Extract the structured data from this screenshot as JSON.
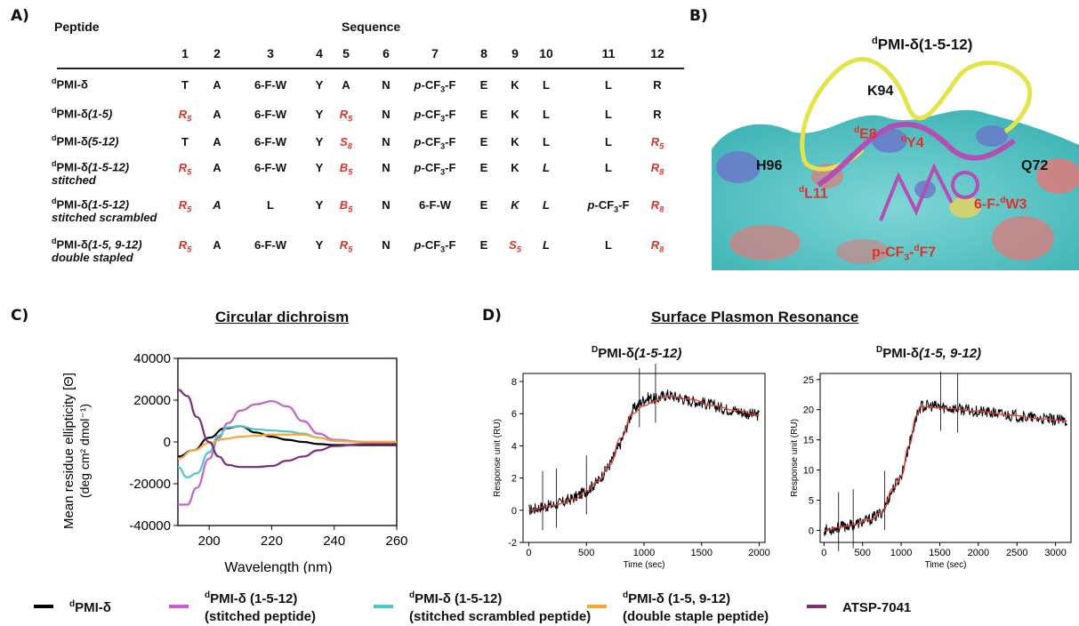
{
  "panels": {
    "a": "A)",
    "b": "B)",
    "c": "C)",
    "d": "D)"
  },
  "table": {
    "header_peptide": "Peptide",
    "header_sequence": "Sequence",
    "positions": [
      "1",
      "2",
      "3",
      "4",
      "5",
      "6",
      "7",
      "8",
      "9",
      "10",
      "11",
      "12"
    ],
    "rows": [
      {
        "name_sup": "d",
        "name_main": "PMI-δ",
        "name_ital": "",
        "name_line2": "",
        "cells": [
          {
            "t": "T"
          },
          {
            "t": "A"
          },
          {
            "t": "6-F-W"
          },
          {
            "t": "Y"
          },
          {
            "t": "A"
          },
          {
            "t": "N"
          },
          {
            "t": "p-CF3-F",
            "pcf": true
          },
          {
            "t": "E"
          },
          {
            "t": "K"
          },
          {
            "t": "L"
          },
          {
            "t": "L"
          },
          {
            "t": "R"
          }
        ]
      },
      {
        "name_sup": "d",
        "name_main": "PMI-δ",
        "name_ital": "(1-5)",
        "name_line2": "",
        "cells": [
          {
            "t": "R",
            "sub": "5",
            "red": true
          },
          {
            "t": "A"
          },
          {
            "t": "6-F-W"
          },
          {
            "t": "Y"
          },
          {
            "t": "R",
            "sub": "5",
            "red": true
          },
          {
            "t": "N"
          },
          {
            "t": "p-CF3-F",
            "pcf": true
          },
          {
            "t": "E"
          },
          {
            "t": "K"
          },
          {
            "t": "L"
          },
          {
            "t": "L"
          },
          {
            "t": "R"
          }
        ]
      },
      {
        "name_sup": "d",
        "name_main": "PMI-δ",
        "name_ital": "(5-12)",
        "name_line2": "",
        "cells": [
          {
            "t": "T"
          },
          {
            "t": "A"
          },
          {
            "t": "6-F-W"
          },
          {
            "t": "Y"
          },
          {
            "t": "S",
            "sub": "8",
            "red": true
          },
          {
            "t": "N"
          },
          {
            "t": "p-CF3-F",
            "pcf": true
          },
          {
            "t": "E"
          },
          {
            "t": "K"
          },
          {
            "t": "L"
          },
          {
            "t": "L"
          },
          {
            "t": "R",
            "sub": "5",
            "red": true
          }
        ]
      },
      {
        "name_sup": "d",
        "name_main": "PMI-δ",
        "name_ital": "(1-5-12)",
        "name_line2": "stitched",
        "cells": [
          {
            "t": "R",
            "sub": "5",
            "red": true
          },
          {
            "t": "A"
          },
          {
            "t": "6-F-W"
          },
          {
            "t": "Y"
          },
          {
            "t": "B",
            "sub": "5",
            "red": true
          },
          {
            "t": "N"
          },
          {
            "t": "p-CF3-F",
            "pcf": true
          },
          {
            "t": "E"
          },
          {
            "t": "K"
          },
          {
            "t": "L",
            "ital": true
          },
          {
            "t": "L"
          },
          {
            "t": "R",
            "sub": "8",
            "red": true
          }
        ]
      },
      {
        "name_sup": "d",
        "name_main": "PMI-δ",
        "name_ital": "(1-5-12)",
        "name_line2": "stitched scrambled",
        "cells": [
          {
            "t": "R",
            "sub": "5",
            "red": true
          },
          {
            "t": "A",
            "ital": true
          },
          {
            "t": "L"
          },
          {
            "t": "Y"
          },
          {
            "t": "B",
            "sub": "5",
            "red": true
          },
          {
            "t": "N"
          },
          {
            "t": "6-F-W"
          },
          {
            "t": "E"
          },
          {
            "t": "K",
            "ital": true
          },
          {
            "t": "L",
            "ital": true
          },
          {
            "t": "p-CF3-F",
            "pcf": true
          },
          {
            "t": "R",
            "sub": "8",
            "red": true
          }
        ]
      },
      {
        "name_sup": "d",
        "name_main": "PMI-δ",
        "name_ital": "(1-5, 9-12)",
        "name_line2": "double stapled",
        "cells": [
          {
            "t": "R",
            "sub": "5",
            "red": true
          },
          {
            "t": "A"
          },
          {
            "t": "6-F-W"
          },
          {
            "t": "Y"
          },
          {
            "t": "R",
            "sub": "5",
            "red": true
          },
          {
            "t": "N"
          },
          {
            "t": "p-CF3-F",
            "pcf": true
          },
          {
            "t": "E"
          },
          {
            "t": "S",
            "sub": "5",
            "red": true
          },
          {
            "t": "L",
            "ital": true
          },
          {
            "t": "L"
          },
          {
            "t": "R",
            "sub": "8",
            "red": true
          }
        ]
      }
    ]
  },
  "structure": {
    "title_sup": "d",
    "title_main": "PMI-δ(1-5-12)",
    "labels_black": [
      "K94",
      "H96",
      "Q72"
    ],
    "labels_red": [
      {
        "sup": "d",
        "main": "E8"
      },
      {
        "sup": "d",
        "main": "Y4"
      },
      {
        "sup": "d",
        "main": "L11"
      },
      {
        "pre": "6-F-",
        "sup": "d",
        "main": "W3"
      },
      {
        "pre": "p-CF",
        "sub": "3",
        "mid": "-",
        "sup": "d",
        "main": "F7"
      }
    ]
  },
  "cd": {
    "title": "Circular dichroism",
    "ylabel_line1": "Mean residue ellipticity [Θ]",
    "ylabel_line2": "(deg cm² dmol⁻¹)",
    "xlabel": "Wavelength (nm)"
  },
  "spr": {
    "title": "Surface Plasmon Resonance",
    "left_title_sup": "D",
    "left_title_main": "PMI-δ",
    "left_title_ital": "(1-5-12)",
    "right_title_sup": "D",
    "right_title_main": "PMI-δ",
    "right_title_ital": "(1-5, 9-12)",
    "ylabel": "Response unit (RU)",
    "xlabel": "Time (sec)"
  },
  "legend": [
    {
      "sup": "d",
      "main": "PMI-δ",
      "line2": "",
      "color": "#000000"
    },
    {
      "sup": "d",
      "main": "PMI-δ (1-5-12)",
      "line2": "(stitched peptide)",
      "color": "#c45fd0"
    },
    {
      "sup": "d",
      "main": "PMI-δ (1-5-12)",
      "line2": "(stitched scrambled peptide)",
      "color": "#4fc7c4"
    },
    {
      "sup": "d",
      "main": "PMI-δ (1-5, 9-12)",
      "line2": "(double staple peptide)",
      "color": "#f5a83a"
    },
    {
      "sup": "",
      "main": "ATSP-7041",
      "line2": "",
      "color": "#7a2f7a"
    }
  ],
  "chart_data": [
    {
      "type": "line",
      "title": "Circular dichroism",
      "xlabel": "Wavelength (nm)",
      "ylabel": "Mean residue ellipticity [Θ] (deg cm² dmol⁻¹)",
      "xlim": [
        190,
        260
      ],
      "ylim": [
        -40000,
        40000
      ],
      "xticks": [
        200,
        220,
        240,
        260
      ],
      "yticks": [
        -40000,
        -20000,
        0,
        20000,
        40000
      ],
      "series": [
        {
          "name": "dPMI-δ",
          "color": "#000000",
          "x": [
            190,
            195,
            200,
            205,
            210,
            215,
            220,
            225,
            230,
            235,
            240,
            250,
            260
          ],
          "y": [
            -7000,
            -4000,
            2000,
            6500,
            7500,
            4500,
            2500,
            1000,
            0,
            -1000,
            -1500,
            -1500,
            -1500
          ]
        },
        {
          "name": "dPMI-δ (1-5-12)",
          "color": "#c45fd0",
          "x": [
            190,
            193,
            196,
            200,
            203,
            206,
            210,
            215,
            220,
            225,
            230,
            235,
            240,
            250,
            260
          ],
          "y": [
            -30000,
            -30000,
            -22000,
            -8000,
            2000,
            9000,
            15000,
            18000,
            19500,
            17000,
            10000,
            4000,
            1000,
            0,
            0
          ]
        },
        {
          "name": "dPMI-δ (1-5-12) stitched scrambled",
          "color": "#4fc7c4",
          "x": [
            190,
            193,
            196,
            200,
            203,
            206,
            210,
            215,
            220,
            225,
            230,
            235,
            240,
            250,
            260
          ],
          "y": [
            -12000,
            -17000,
            -15000,
            -5000,
            3000,
            7000,
            7500,
            6000,
            5500,
            5000,
            4000,
            2000,
            500,
            0,
            0
          ]
        },
        {
          "name": "dPMI-δ (1-5, 9-12)",
          "color": "#f5a83a",
          "x": [
            190,
            195,
            200,
            205,
            210,
            215,
            220,
            225,
            230,
            235,
            240,
            250,
            260
          ],
          "y": [
            -8000,
            -4000,
            -500,
            1500,
            2500,
            3000,
            3500,
            3500,
            3500,
            2000,
            500,
            0,
            0
          ]
        },
        {
          "name": "ATSP-7041",
          "color": "#7a2f7a",
          "x": [
            190,
            193,
            196,
            200,
            203,
            206,
            210,
            215,
            220,
            225,
            230,
            235,
            240,
            250,
            260
          ],
          "y": [
            25000,
            22000,
            12000,
            0,
            -7000,
            -11000,
            -12000,
            -12000,
            -11500,
            -9000,
            -7000,
            -4000,
            -2000,
            -1000,
            -1000
          ]
        }
      ]
    },
    {
      "type": "line",
      "title": "DPMI-δ(1-5-12)",
      "xlabel": "Time (sec)",
      "ylabel": "Response unit (RU)",
      "xlim": [
        -50,
        2050
      ],
      "ylim": [
        -2,
        8.5
      ],
      "xticks": [
        0,
        500,
        1000,
        1500,
        2000
      ],
      "yticks": [
        -2,
        0,
        2,
        4,
        6,
        8
      ],
      "series": [
        {
          "name": "data",
          "color": "#000000",
          "x": [
            0,
            100,
            200,
            300,
            400,
            500,
            600,
            700,
            800,
            900,
            1000,
            1050,
            1100,
            1200,
            1300,
            1400,
            1500,
            1600,
            1700,
            1800,
            1900,
            2000
          ],
          "y": [
            0,
            0.2,
            0.3,
            0.5,
            0.8,
            1.2,
            1.8,
            2.8,
            4.2,
            6.2,
            6.9,
            7.0,
            6.9,
            7.2,
            7.0,
            6.8,
            6.7,
            6.5,
            6.3,
            6.2,
            6.0,
            5.9
          ]
        },
        {
          "name": "fit",
          "color": "#e53935",
          "x": [
            0,
            200,
            400,
            500,
            600,
            700,
            800,
            900,
            1000,
            1100,
            1200,
            1400,
            1600,
            1800,
            2000
          ],
          "y": [
            0,
            0.3,
            0.7,
            1.2,
            1.8,
            2.8,
            4.5,
            6.0,
            6.5,
            6.8,
            7.1,
            6.9,
            6.5,
            6.2,
            5.9
          ]
        }
      ]
    },
    {
      "type": "line",
      "title": "DPMI-δ(1-5, 9-12)",
      "xlabel": "Time (sec)",
      "ylabel": "Response unit (RU)",
      "xlim": [
        -50,
        3200
      ],
      "ylim": [
        -2,
        26
      ],
      "xticks": [
        0,
        500,
        1000,
        1500,
        2000,
        2500,
        3000
      ],
      "yticks": [
        0,
        5,
        10,
        15,
        20,
        25
      ],
      "series": [
        {
          "name": "data",
          "color": "#000000",
          "x": [
            0,
            200,
            400,
            600,
            750,
            900,
            1000,
            1100,
            1200,
            1250,
            1400,
            1600,
            1800,
            2000,
            2200,
            2400,
            2600,
            2800,
            3000,
            3150
          ],
          "y": [
            0,
            0.5,
            1,
            1.8,
            3,
            7,
            9,
            14,
            19,
            20.5,
            20.6,
            20.3,
            20,
            19.7,
            19.4,
            19.1,
            18.8,
            18.5,
            18.3,
            18.1
          ]
        },
        {
          "name": "fit",
          "color": "#e53935",
          "x": [
            0,
            200,
            400,
            600,
            750,
            900,
            1000,
            1100,
            1200,
            1250,
            1600,
            2000,
            2400,
            2800,
            3150
          ],
          "y": [
            0,
            0.5,
            1,
            1.8,
            3,
            7,
            9,
            14,
            19,
            20.5,
            20.2,
            19.7,
            19.1,
            18.5,
            18.1
          ]
        }
      ]
    }
  ]
}
